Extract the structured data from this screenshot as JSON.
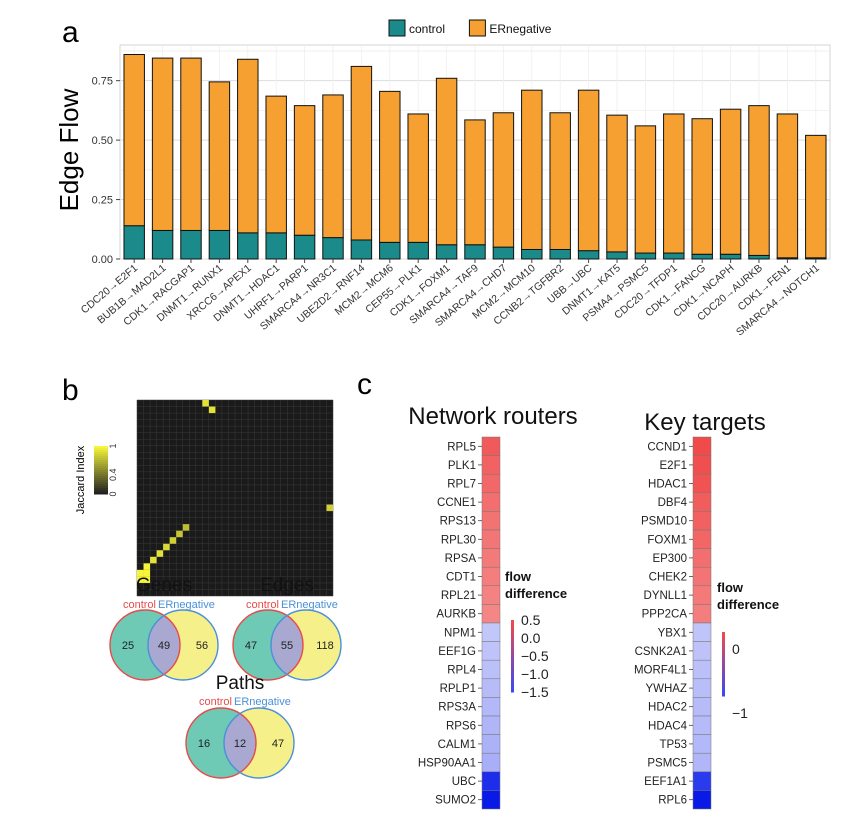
{
  "panel_labels": {
    "a": "a",
    "b": "b",
    "c": "c"
  },
  "chart_data": [
    {
      "type": "bar",
      "stacked": true,
      "title": "",
      "xlabel": "",
      "ylabel": "Edge Flow",
      "ylim": [
        0,
        0.9
      ],
      "yticks": [
        "0.00",
        "0.25",
        "0.50",
        "0.75"
      ],
      "grid": true,
      "legend": "top",
      "categories": [
        "CDC20->E2F1",
        "BUB1B->MAD2L1",
        "CDK1->RACGAP1",
        "DNMT1->RUNX1",
        "XRCC6->APEX1",
        "DNMT1->HDAC1",
        "UHRF1->PARP1",
        "SMARCA4->NR3C1",
        "UBE2D2->RNF14",
        "MCM2->MCM6",
        "CEP55->PLK1",
        "CDK1->FOXM1",
        "SMARCA4->TAF9",
        "SMARCA4->CHD7",
        "MCM2->MCM10",
        "CCNB2->TGFBR2",
        "UBB->UBC",
        "DNMT1->KAT5",
        "PSMA4->PSMC5",
        "CDC20->TFDP1",
        "CDK1->FANCG",
        "CDK1->NCAPH",
        "CDC20->AURKB",
        "CDK1->FEN1",
        "SMARCA4->NOTCH1"
      ],
      "series": [
        {
          "name": "control",
          "color": "#1a8a8a",
          "values": [
            0.14,
            0.12,
            0.12,
            0.12,
            0.11,
            0.11,
            0.1,
            0.09,
            0.08,
            0.07,
            0.07,
            0.06,
            0.06,
            0.05,
            0.04,
            0.04,
            0.035,
            0.03,
            0.025,
            0.025,
            0.02,
            0.02,
            0.015,
            0.005,
            0.005
          ]
        },
        {
          "name": "ERnegative",
          "color": "#f5a030",
          "values": [
            0.72,
            0.725,
            0.725,
            0.625,
            0.73,
            0.575,
            0.545,
            0.6,
            0.73,
            0.635,
            0.54,
            0.7,
            0.525,
            0.565,
            0.67,
            0.575,
            0.675,
            0.575,
            0.535,
            0.585,
            0.57,
            0.61,
            0.63,
            0.605,
            0.515
          ]
        }
      ]
    },
    {
      "type": "heatmap",
      "colorbar_label": "Jaccard Index",
      "colorbar_ticks": [
        "1",
        "0.4",
        "0"
      ],
      "grid_size": 30,
      "cells": [
        {
          "row": 0,
          "col": 10,
          "value": 0.9
        },
        {
          "row": 1,
          "col": 11,
          "value": 0.9
        },
        {
          "row": 16,
          "col": 29,
          "value": 0.8
        },
        {
          "row": 19,
          "col": 7,
          "value": 0.7
        },
        {
          "row": 20,
          "col": 6,
          "value": 0.75
        },
        {
          "row": 21,
          "col": 5,
          "value": 0.8
        },
        {
          "row": 22,
          "col": 4,
          "value": 0.85
        },
        {
          "row": 23,
          "col": 3,
          "value": 0.9
        },
        {
          "row": 24,
          "col": 2,
          "value": 0.9
        },
        {
          "row": 25,
          "col": 1,
          "value": 1.0
        },
        {
          "row": 26,
          "col": 0,
          "value": 1.0
        },
        {
          "row": 26,
          "col": 1,
          "value": 1.0
        },
        {
          "row": 27,
          "col": 0,
          "value": 1.0
        },
        {
          "row": 27,
          "col": 1,
          "value": 1.0
        }
      ]
    },
    {
      "type": "venn",
      "diagrams": [
        {
          "title": "Genes",
          "left_label": "control",
          "right_label": "ERnegative",
          "left_only": 25,
          "overlap": 49,
          "right_only": 56
        },
        {
          "title": "Edges",
          "left_label": "control",
          "right_label": "ERnegative",
          "left_only": 47,
          "overlap": 55,
          "right_only": 118
        },
        {
          "title": "Paths",
          "left_label": "control",
          "right_label": "ERnegative",
          "left_only": 16,
          "overlap": 12,
          "right_only": 47
        }
      ],
      "left_color": "#6ec9b5",
      "right_color": "#f5f08a",
      "overlap_color": "#a9a8d1",
      "left_stroke": "#e84a4a",
      "right_stroke": "#4a90d9"
    },
    {
      "type": "heatmap",
      "title": "Network routers",
      "legend_title": [
        "flow",
        "difference"
      ],
      "legend_ticks": [
        "0.5",
        "0.0",
        "−0.5",
        "−1.0",
        "−1.5"
      ],
      "rows": [
        "RPL5",
        "PLK1",
        "RPL7",
        "CCNE1",
        "RPS13",
        "RPL30",
        "RPSA",
        "CDT1",
        "RPL21",
        "AURKB",
        "NPM1",
        "EEF1G",
        "RPL4",
        "RPLP1",
        "RPS3A",
        "RPS6",
        "CALM1",
        "HSP90AA1",
        "UBC",
        "SUMO2"
      ],
      "values": [
        0.62,
        0.58,
        0.55,
        0.52,
        0.5,
        0.48,
        0.46,
        0.44,
        0.42,
        0.4,
        -0.3,
        -0.35,
        -0.4,
        -0.45,
        -0.5,
        -0.55,
        -0.6,
        -0.65,
        -1.5,
        -1.7
      ],
      "range": [
        -1.7,
        0.7
      ]
    },
    {
      "type": "heatmap",
      "title": "Key targets",
      "legend_title": [
        "flow",
        "difference"
      ],
      "legend_ticks": [
        "0",
        "−1"
      ],
      "rows": [
        "CCND1",
        "E2F1",
        "HDAC1",
        "DBF4",
        "PSMD10",
        "FOXM1",
        "EP300",
        "CHEK2",
        "DYNLL1",
        "PPP2CA",
        "YBX1",
        "CSNK2A1",
        "MORF4L1",
        "YWHAZ",
        "HDAC2",
        "HDAC4",
        "TP53",
        "PSMC5",
        "EEF1A1",
        "RPL6"
      ],
      "values": [
        0.6,
        0.58,
        0.56,
        0.52,
        0.5,
        0.48,
        0.44,
        0.42,
        0.4,
        0.38,
        -0.3,
        -0.32,
        -0.35,
        -0.38,
        -0.4,
        -0.42,
        -0.45,
        -0.48,
        -1.2,
        -1.5
      ],
      "range": [
        -1.5,
        0.6
      ]
    }
  ]
}
